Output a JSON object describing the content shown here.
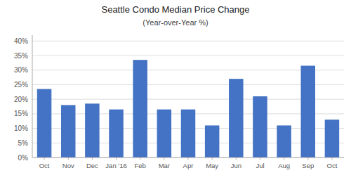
{
  "chart_data": {
    "type": "bar",
    "title": "Seattle Condo Median Price Change",
    "subtitle": "(Year-over-Year %)",
    "categories": [
      "Oct",
      "Nov",
      "Dec",
      "Jan '16",
      "Feb",
      "Mar",
      "Apr",
      "May",
      "Jun",
      "Jul",
      "Aug",
      "Sep",
      "Oct"
    ],
    "values": [
      23.5,
      18.0,
      18.5,
      16.5,
      33.5,
      16.5,
      16.5,
      11.0,
      27.0,
      21.0,
      11.0,
      31.5,
      13.0
    ],
    "color": "#4472C4",
    "ylim": [
      0,
      42
    ],
    "yticks": [
      {
        "value": 0,
        "label": "0%"
      },
      {
        "value": 5,
        "label": "5%"
      },
      {
        "value": 10,
        "label": "10%"
      },
      {
        "value": 15,
        "label": "15%"
      },
      {
        "value": 20,
        "label": "20%"
      },
      {
        "value": 25,
        "label": "25%"
      },
      {
        "value": 30,
        "label": "30%"
      },
      {
        "value": 35,
        "label": "35%"
      },
      {
        "value": 40,
        "label": "40%"
      }
    ],
    "grid": true
  }
}
